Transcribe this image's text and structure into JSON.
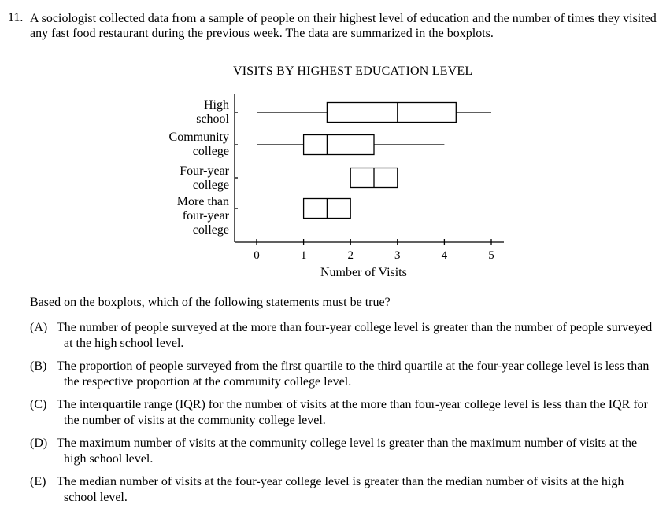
{
  "question": {
    "number": "11.",
    "stem": "A sociologist collected data from a sample of people on their highest level of education and the number of times they visited any fast food restaurant during the previous week. The data are summarized in the boxplots.",
    "prompt": "Based on the boxplots, which of the following statements must be true?",
    "options": [
      {
        "letter": "(A)",
        "text": "The number of people surveyed at the more than four-year college level is greater than the number of people surveyed at the high school level."
      },
      {
        "letter": "(B)",
        "text": "The proportion of people surveyed from the first quartile to the third quartile at the four-year college level is less than the respective proportion at the community college level."
      },
      {
        "letter": "(C)",
        "text": "The interquartile range (IQR) for the number of visits at the more than four-year college level is less than the IQR for the number of visits at the community college level."
      },
      {
        "letter": "(D)",
        "text": "The maximum number of visits at the community college level is greater than the maximum number of visits at the high school level."
      },
      {
        "letter": "(E)",
        "text": "The median number of visits at the four-year college level is greater than the median number of visits at the high school level."
      }
    ]
  },
  "chart_data": {
    "type": "boxplot",
    "title": "VISITS BY HIGHEST EDUCATION LEVEL",
    "xlabel": "Number of Visits",
    "ylabel": "",
    "xlim": [
      -0.4,
      5.3
    ],
    "xticks": [
      "0",
      "1",
      "2",
      "3",
      "4",
      "5"
    ],
    "grid": false,
    "categories": [
      {
        "label_lines": [
          "High",
          "school"
        ],
        "min": 0,
        "q1": 1.5,
        "median": 3,
        "q3": 4.25,
        "max": 5
      },
      {
        "label_lines": [
          "Community",
          "college"
        ],
        "min": 0,
        "q1": 1,
        "median": 1.5,
        "q3": 2.5,
        "max": 4
      },
      {
        "label_lines": [
          "Four-year",
          "college"
        ],
        "min": 2,
        "q1": 2,
        "median": 2.5,
        "q3": 3,
        "max": 3
      },
      {
        "label_lines": [
          "More than",
          "four-year",
          "college"
        ],
        "min": 1,
        "q1": 1,
        "median": 1.5,
        "q3": 2,
        "max": 2
      }
    ]
  }
}
